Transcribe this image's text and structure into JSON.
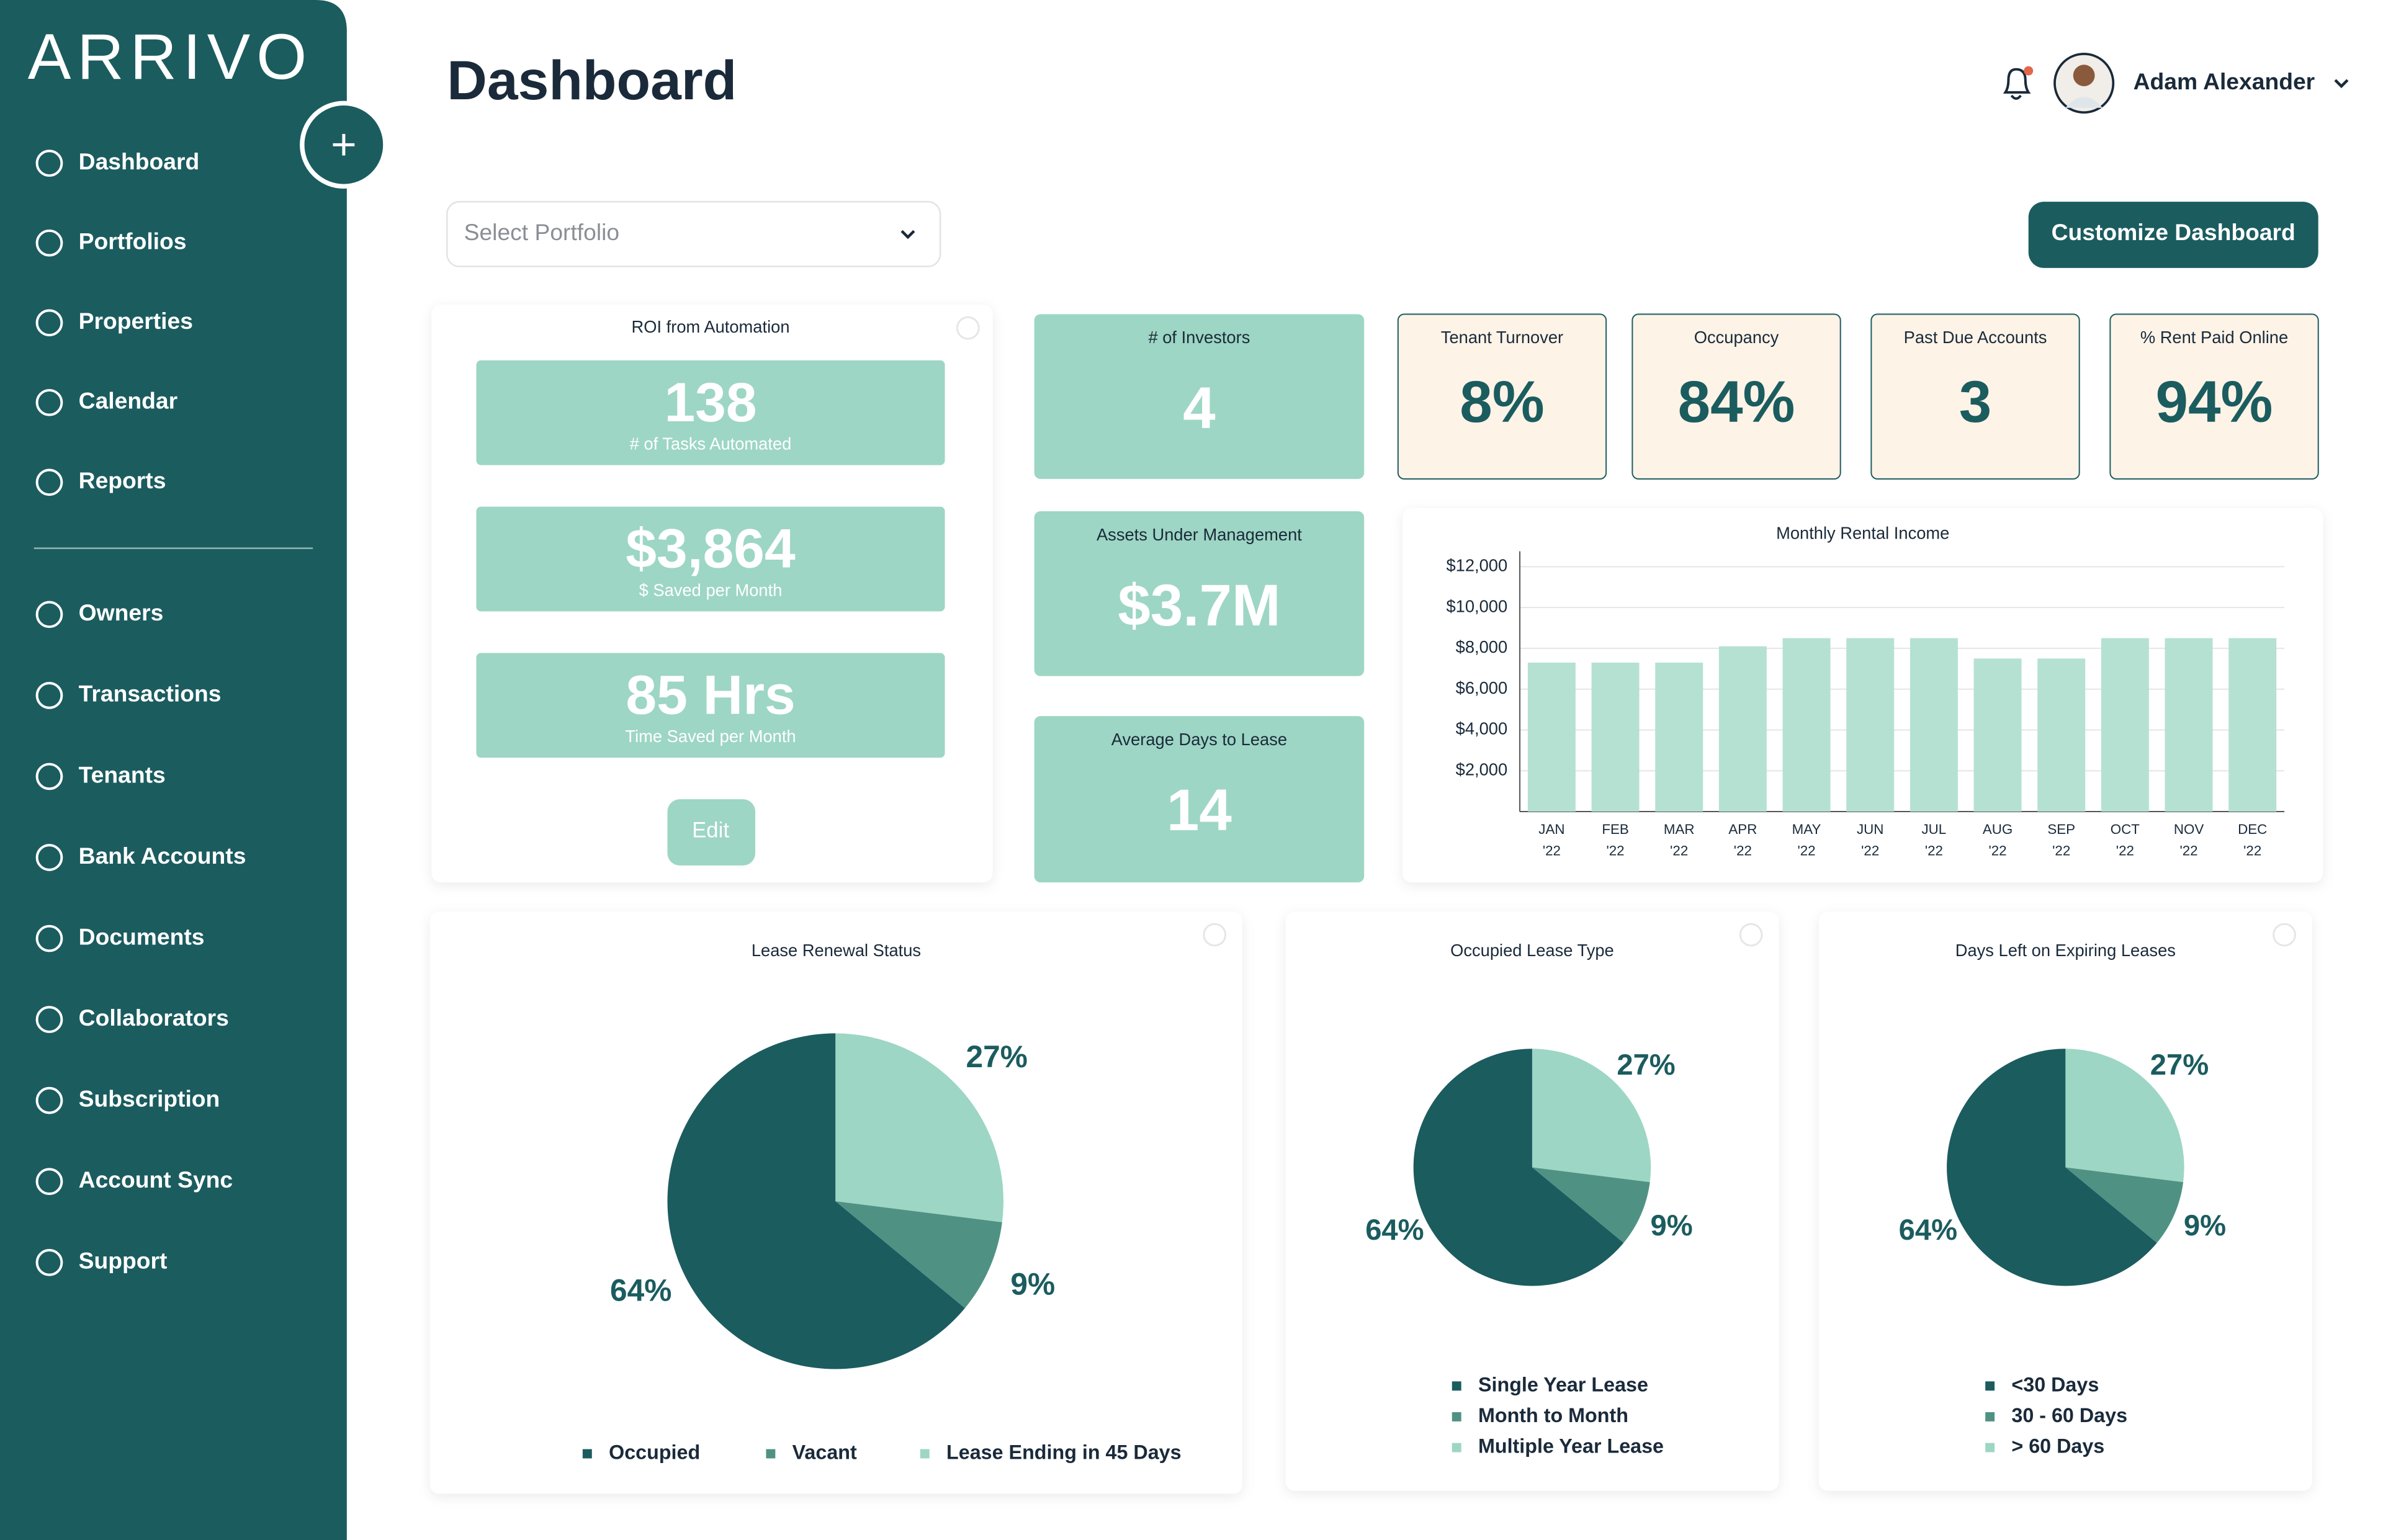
{
  "brand": "ARRIVO",
  "sidebar": {
    "items": [
      "Dashboard",
      "Portfolios",
      "Properties",
      "Calendar",
      "Reports",
      "Owners",
      "Transactions",
      "Tenants",
      "Bank Accounts",
      "Documents",
      "Collaborators",
      "Subscription",
      "Account Sync",
      "Support"
    ]
  },
  "header": {
    "title": "Dashboard",
    "user": "Adam Alexander",
    "portfolio_select": "Select Portfolio",
    "action": "Customize Dashboard"
  },
  "roi": {
    "title": "ROI from Automation",
    "metrics": [
      {
        "value": "138",
        "label": "# of Tasks Automated"
      },
      {
        "value": "$3,864",
        "label": "$ Saved per Month"
      },
      {
        "value": "85 Hrs",
        "label": "Time Saved per Month"
      }
    ],
    "button": "Edit"
  },
  "kpis": [
    {
      "label": "# of Investors",
      "value": "4"
    },
    {
      "label": "Assets Under Management",
      "value": "$3.7M"
    },
    {
      "label": "Average Days to Lease",
      "value": "14"
    },
    {
      "label": "Tenant Turnover",
      "value": "8%"
    },
    {
      "label": "Occupancy",
      "value": "84%"
    },
    {
      "label": "Past Due Accounts",
      "value": "3"
    },
    {
      "label": "% Rent Paid Online",
      "value": "94%"
    }
  ],
  "chart_data": [
    {
      "type": "bar",
      "title": "Monthly Rental Income",
      "categories": [
        "JAN '22",
        "FEB '22",
        "MAR '22",
        "APR '22",
        "MAY '22",
        "JUN '22",
        "JUL '22",
        "AUG '22",
        "SEP '22",
        "OCT '22",
        "NOV '22",
        "DEC '22"
      ],
      "values": [
        7300,
        7300,
        7300,
        8100,
        8500,
        8500,
        8500,
        7500,
        7500,
        8500,
        8500,
        8500
      ],
      "color": "#b5e1d2",
      "ylim": [
        0,
        12000
      ],
      "yticks": [
        {
          "value": 2000,
          "label": "$2,000"
        },
        {
          "value": 4000,
          "label": "$4,000"
        },
        {
          "value": 6000,
          "label": "$6,000"
        },
        {
          "value": 8000,
          "label": "$8,000"
        },
        {
          "value": 10000,
          "label": "$10,000"
        },
        {
          "value": 12000,
          "label": "$12,000"
        }
      ],
      "grid": true
    },
    {
      "type": "pie",
      "title": "Lease Renewal Status",
      "categories": [
        "Occupied",
        "Vacant",
        "Lease Ending in 45 Days"
      ],
      "values": [
        64,
        9,
        27
      ],
      "value_labels": [
        "64%",
        "9%",
        "27%"
      ],
      "colors": [
        "#1b5c5f",
        "#4f9283",
        "#9dd6c4"
      ],
      "legend": "bottom"
    },
    {
      "type": "pie",
      "title": "Occupied Lease Type",
      "categories": [
        "Single Year Lease",
        "Month to Month",
        "Multiple Year Lease"
      ],
      "values": [
        64,
        9,
        27
      ],
      "value_labels": [
        "64%",
        "9%",
        "27%"
      ],
      "colors": [
        "#1b5c5f",
        "#4f9283",
        "#9dd6c4"
      ],
      "legend": "bottom"
    },
    {
      "type": "pie",
      "title": "Days Left on Expiring Leases",
      "categories": [
        "<30 Days",
        "30 - 60 Days",
        "> 60 Days"
      ],
      "values": [
        64,
        9,
        27
      ],
      "value_labels": [
        "64%",
        "9%",
        "27%"
      ],
      "colors": [
        "#1b5c5f",
        "#4f9283",
        "#9dd6c4"
      ],
      "legend": "bottom"
    }
  ]
}
